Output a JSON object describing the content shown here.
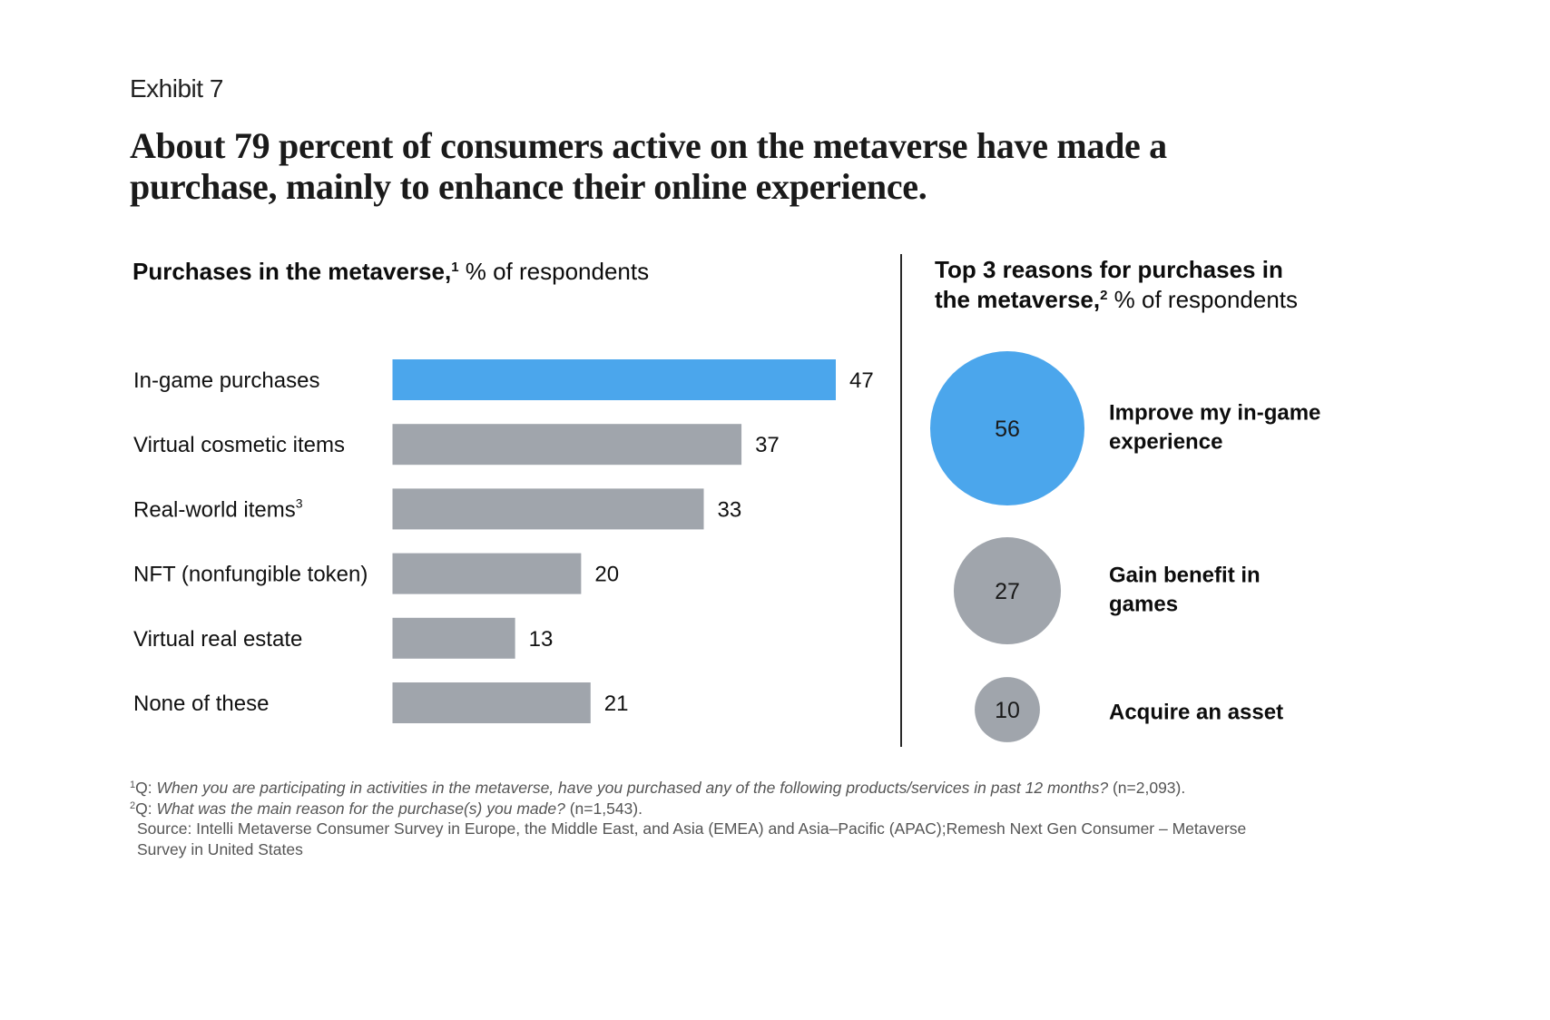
{
  "exhibit_label": "Exhibit 7",
  "title_lines": [
    "About 79 percent of consumers active on the metaverse have made a",
    "purchase, mainly to enhance their online experience."
  ],
  "colors": {
    "highlight": "#4BA6EC",
    "neutral": "#A0A5AC",
    "text": "#111111",
    "footnote": "#555555"
  },
  "left_panel": {
    "heading_bold": "Purchases in the metaverse,",
    "heading_sup": "1",
    "heading_light": " % of respondents"
  },
  "right_panel": {
    "heading_bold_line1": "Top 3 reasons for purchases in",
    "heading_bold_line2": "the metaverse,",
    "heading_sup": "2",
    "heading_light": " % of respondents"
  },
  "chart_data": [
    {
      "type": "bar",
      "orientation": "horizontal",
      "title": "Purchases in the metaverse, % of respondents",
      "categories": [
        "In-game purchases",
        "Virtual cosmetic items",
        "Real-world items",
        "NFT (nonfungible token)",
        "Virtual real estate",
        "None of these"
      ],
      "category_superscripts": [
        "",
        "",
        "3",
        "",
        "",
        ""
      ],
      "values": [
        47,
        37,
        33,
        20,
        13,
        21
      ],
      "value_labels": [
        "47",
        "37",
        "33",
        "20",
        "13",
        "21"
      ],
      "highlight": [
        true,
        false,
        false,
        false,
        false,
        false
      ],
      "xlim": [
        0,
        47
      ],
      "grid": false,
      "xlabel": "",
      "ylabel": ""
    },
    {
      "type": "bubble",
      "title": "Top 3 reasons for purchases in the metaverse, % of respondents",
      "categories": [
        "Improve my in-game experience",
        "Gain benefit in games",
        "Acquire an asset"
      ],
      "category_lines": [
        [
          "Improve my in-game",
          "experience"
        ],
        [
          "Gain benefit in",
          "games"
        ],
        [
          "Acquire an asset"
        ]
      ],
      "values": [
        56,
        27,
        10
      ],
      "value_labels": [
        "56",
        "27",
        "10"
      ],
      "highlight": [
        true,
        false,
        false
      ],
      "size_encoding": "area"
    }
  ],
  "footnotes": {
    "fn1_marker": "1",
    "fn1_prefix": "Q: ",
    "fn1_question": "When you are participating in activities in the metaverse, have you purchased any of the following products/services in past 12 months?",
    "fn1_suffix": " (n=2,093).",
    "fn2_marker": "2",
    "fn2_prefix": "Q: ",
    "fn2_question": "What was the main reason for the purchase(s) you made?",
    "fn2_suffix": " (n=1,543).",
    "source_lines": [
      "Source: Intelli Metaverse Consumer Survey in Europe, the Middle East, and Asia (EMEA) and Asia–Pacific (APAC);Remesh Next Gen Consumer – Metaverse",
      "Survey in United States"
    ]
  }
}
